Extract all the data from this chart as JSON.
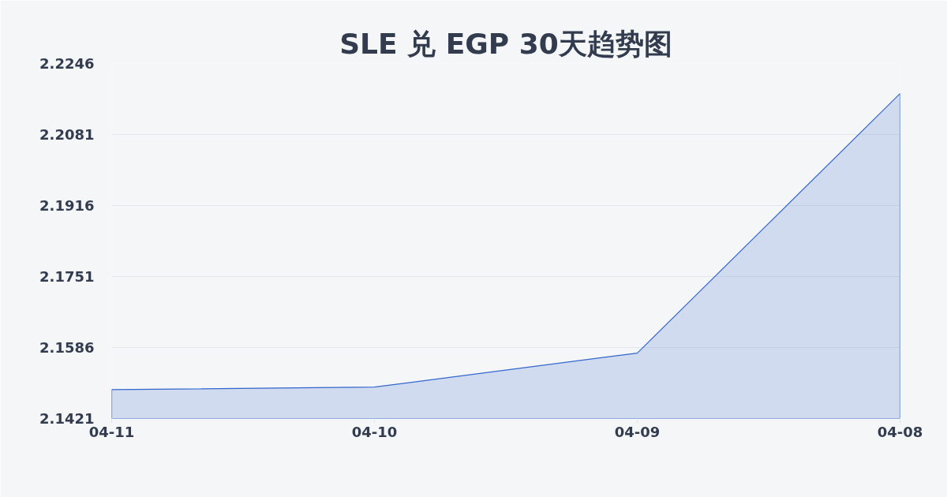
{
  "chart_data": {
    "type": "area",
    "title": "SLE 兑 EGP 30天趋势图",
    "categories": [
      "04-11",
      "04-10",
      "04-09",
      "04-08"
    ],
    "series": [
      {
        "color": "#3366cc",
        "values": [
          2.1488,
          2.1494,
          2.1573,
          2.2176
        ]
      }
    ],
    "ylim": [
      2.1421,
      2.2246
    ],
    "yticks": [
      2.1421,
      2.1586,
      2.1751,
      2.1916,
      2.2081,
      2.2246
    ],
    "grid": "y",
    "marker": "none",
    "line_style": "solid"
  }
}
